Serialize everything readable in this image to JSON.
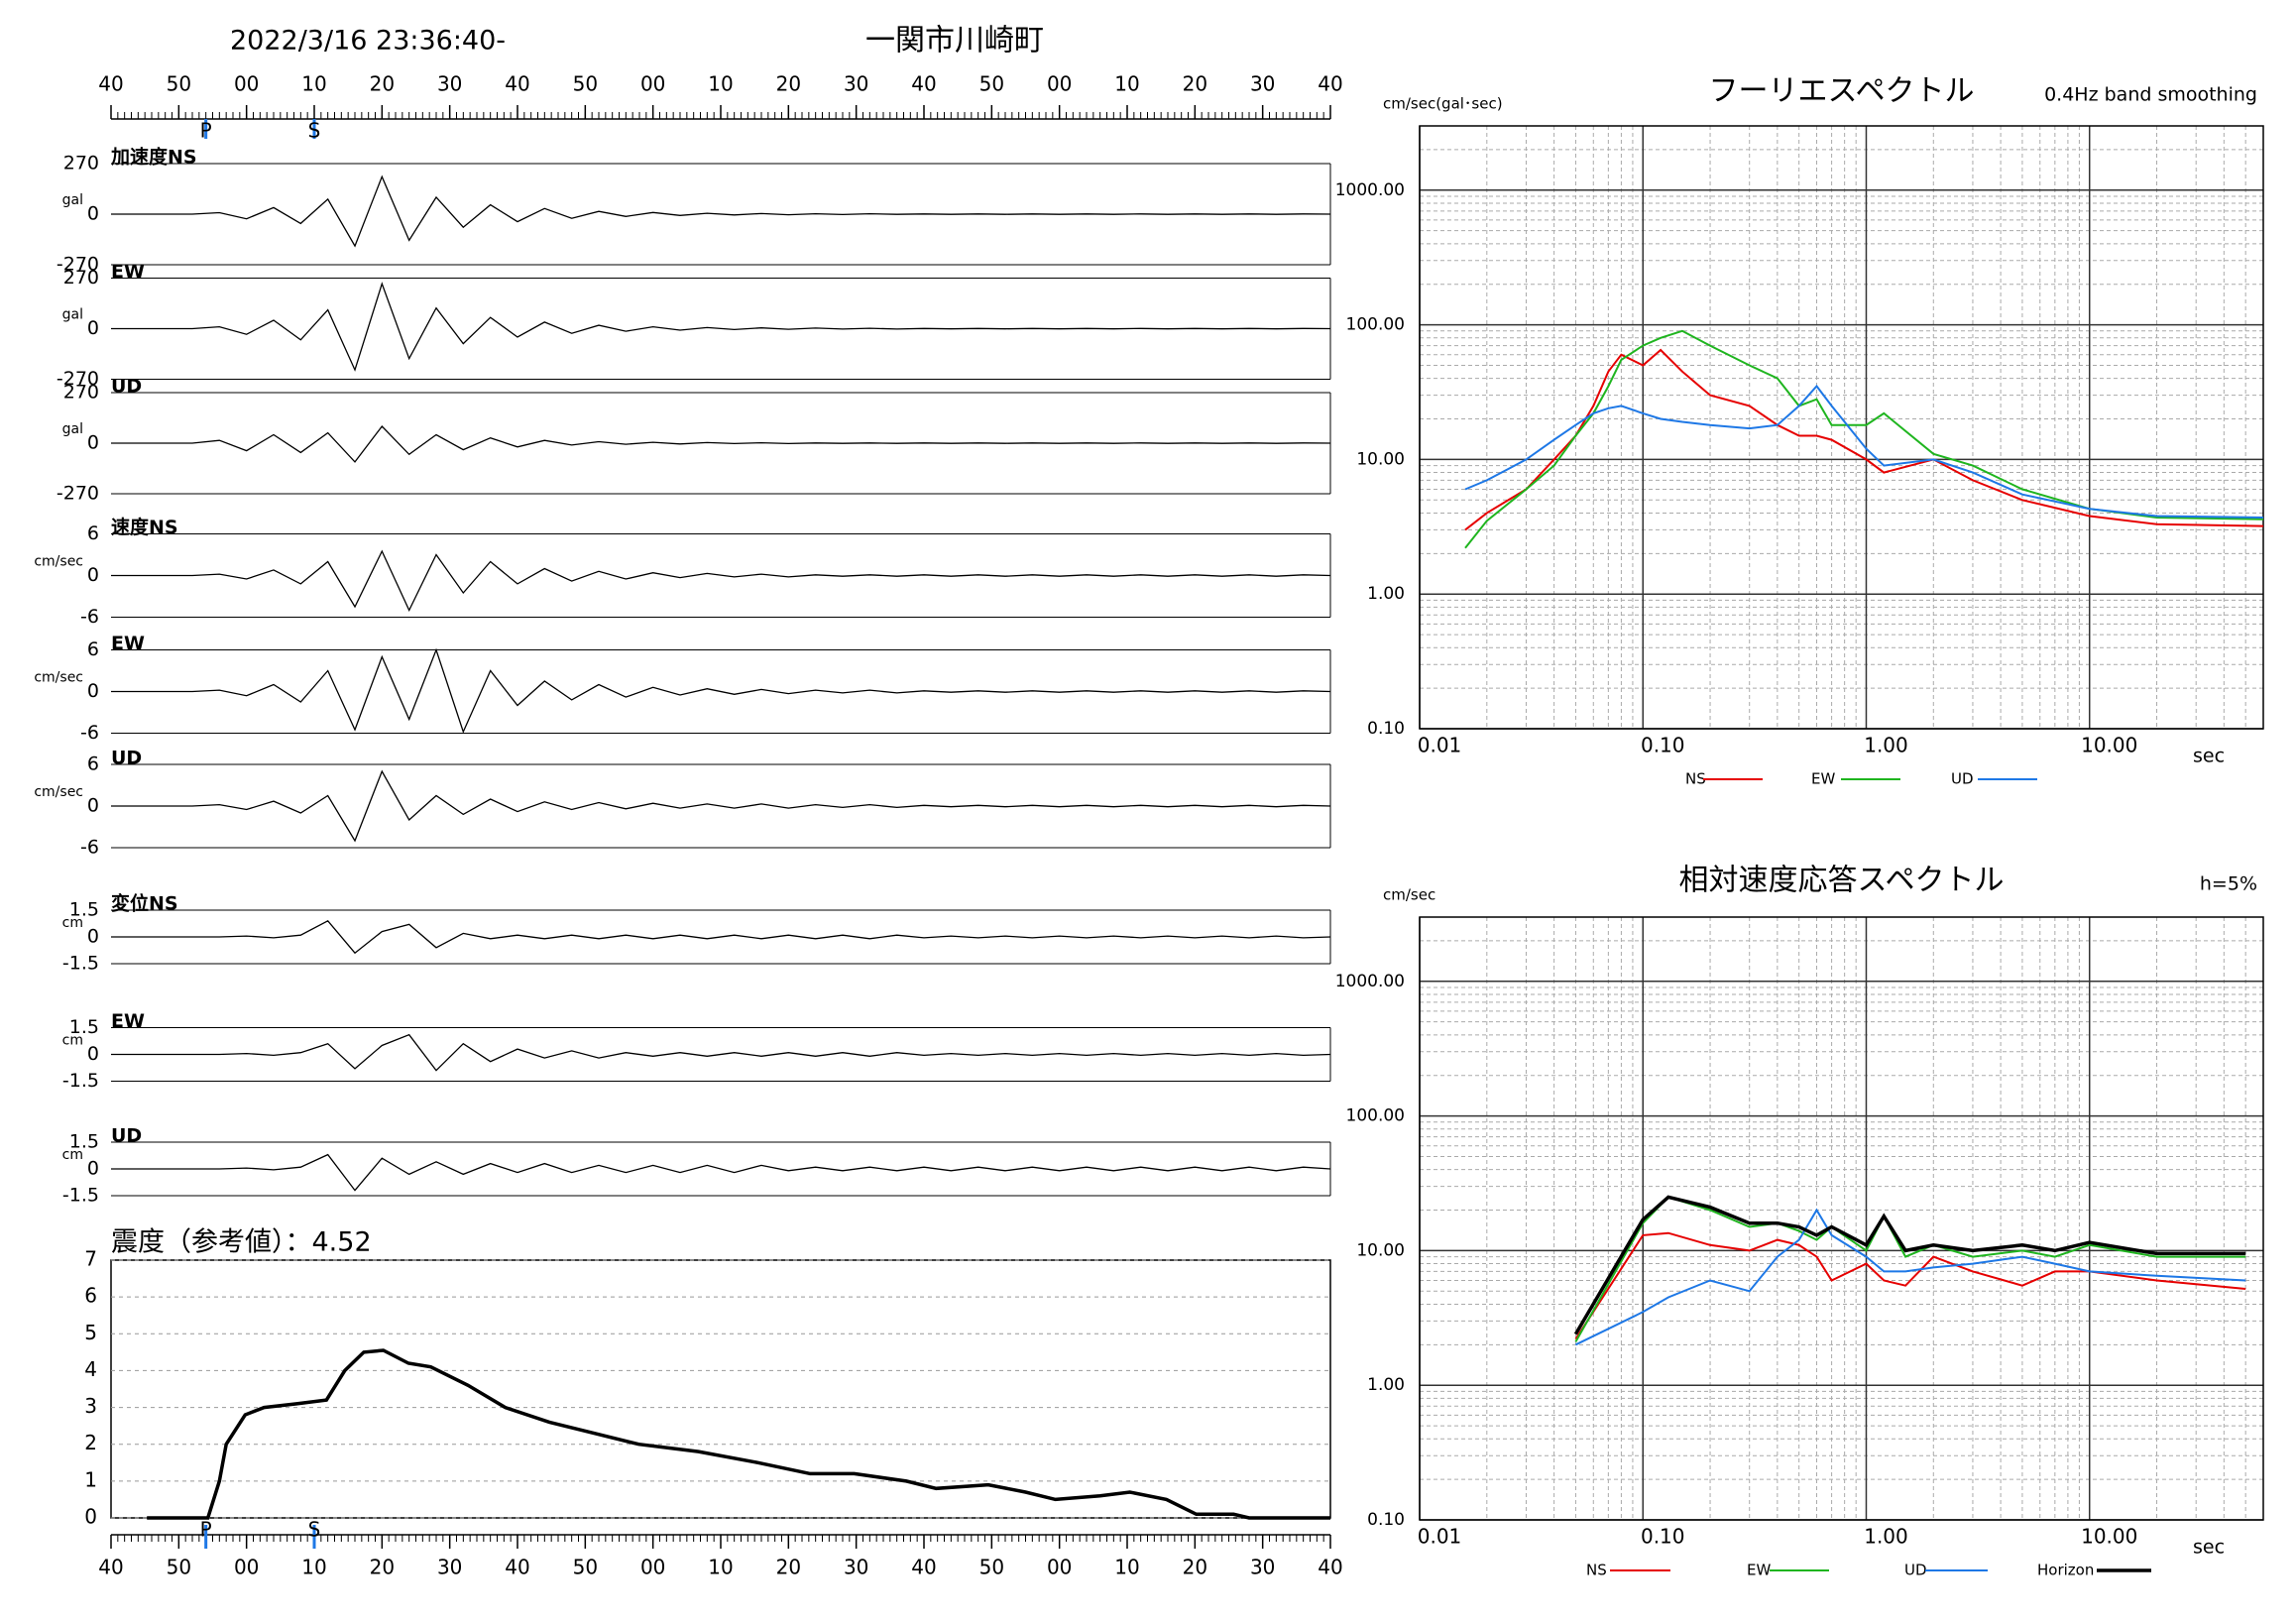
{
  "header": {
    "datetime": "2022/3/16 23:36:40-",
    "location": "一関市川崎町"
  },
  "chart_data": [
    {
      "type": "waveform",
      "xlim": [
        0,
        180
      ],
      "xticks": [
        {
          "value": 0,
          "label": "40"
        },
        {
          "value": 10,
          "label": "50"
        },
        {
          "value": 20,
          "label": "00"
        },
        {
          "value": 30,
          "label": "10"
        },
        {
          "value": 40,
          "label": "20"
        },
        {
          "value": 50,
          "label": "30"
        },
        {
          "value": 60,
          "label": "40"
        },
        {
          "value": 70,
          "label": "50"
        },
        {
          "value": 80,
          "label": "00"
        },
        {
          "value": 90,
          "label": "10"
        },
        {
          "value": 100,
          "label": "20"
        },
        {
          "value": 110,
          "label": "30"
        },
        {
          "value": 120,
          "label": "40"
        },
        {
          "value": 130,
          "label": "50"
        },
        {
          "value": 140,
          "label": "00"
        },
        {
          "value": 150,
          "label": "10"
        },
        {
          "value": 160,
          "label": "20"
        },
        {
          "value": 170,
          "label": "30"
        },
        {
          "value": 180,
          "label": "40"
        }
      ],
      "phases": [
        {
          "name": "P",
          "value": 14
        },
        {
          "name": "S",
          "value": 30
        }
      ],
      "x": [
        0,
        4,
        8,
        12,
        16,
        20,
        24,
        28,
        32,
        36,
        40,
        44,
        48,
        52,
        56,
        60,
        64,
        68,
        72,
        76,
        80,
        84,
        88,
        92,
        96,
        100,
        104,
        108,
        112,
        116,
        120,
        124,
        128,
        132,
        136,
        140,
        144,
        148,
        152,
        156,
        160,
        164,
        168,
        172,
        176,
        180
      ],
      "traces": [
        {
          "name": "加速度NS",
          "unit": "gal",
          "ylim": [
            -270,
            270
          ],
          "yticks": [
            270,
            0,
            -270
          ],
          "values": [
            0,
            0,
            0,
            0,
            8,
            -25,
            35,
            -50,
            80,
            -170,
            200,
            -140,
            90,
            -70,
            50,
            -40,
            30,
            -22,
            15,
            -12,
            9,
            -7,
            5,
            -4,
            3,
            -3,
            2,
            -2,
            2,
            -1,
            1,
            -1,
            1,
            -1,
            1,
            -1,
            1,
            -1,
            1,
            -1,
            1,
            -1,
            1,
            -1,
            1,
            0
          ]
        },
        {
          "name": "EW",
          "unit": "gal",
          "ylim": [
            -270,
            270
          ],
          "yticks": [
            270,
            0,
            -270
          ],
          "values": [
            0,
            0,
            0,
            0,
            10,
            -30,
            45,
            -60,
            100,
            -220,
            240,
            -160,
            110,
            -80,
            60,
            -45,
            35,
            -25,
            18,
            -14,
            10,
            -8,
            6,
            -5,
            4,
            -3,
            3,
            -2,
            2,
            -2,
            1,
            -1,
            1,
            -1,
            1,
            -1,
            1,
            -1,
            1,
            -1,
            1,
            -1,
            1,
            -1,
            1,
            0
          ]
        },
        {
          "name": "UD",
          "unit": "gal",
          "ylim": [
            -270,
            270
          ],
          "yticks": [
            270,
            0,
            -270
          ],
          "values": [
            0,
            0,
            0,
            0,
            15,
            -40,
            45,
            -50,
            55,
            -100,
            90,
            -60,
            45,
            -35,
            28,
            -20,
            15,
            -10,
            8,
            -6,
            5,
            -4,
            3,
            -2,
            2,
            -2,
            1,
            -1,
            1,
            -1,
            1,
            -1,
            1,
            -1,
            1,
            -1,
            1,
            -1,
            1,
            -1,
            1,
            -1,
            1,
            -1,
            1,
            0
          ]
        },
        {
          "name": "速度NS",
          "unit": "cm/sec",
          "ylim": [
            -6,
            6
          ],
          "yticks": [
            6,
            0,
            -6
          ],
          "values": [
            0,
            0,
            0,
            0,
            0.2,
            -0.5,
            0.8,
            -1.2,
            2,
            -4.5,
            3.5,
            -5,
            3,
            -2.5,
            2,
            -1.2,
            1,
            -0.8,
            0.6,
            -0.5,
            0.4,
            -0.3,
            0.3,
            -0.2,
            0.2,
            -0.2,
            0.1,
            -0.1,
            0.1,
            -0.1,
            0.1,
            -0.1,
            0.1,
            -0.1,
            0.1,
            -0.1,
            0.1,
            -0.1,
            0.1,
            -0.1,
            0.1,
            -0.1,
            0.1,
            -0.1,
            0.1,
            0
          ]
        },
        {
          "name": "EW",
          "unit": "cm/sec",
          "ylim": [
            -6,
            6
          ],
          "yticks": [
            6,
            0,
            -6
          ],
          "values": [
            0,
            0,
            0,
            0,
            0.2,
            -0.6,
            1,
            -1.5,
            3,
            -5.5,
            5,
            -4,
            6,
            -5.8,
            3,
            -2,
            1.5,
            -1.2,
            1,
            -0.8,
            0.6,
            -0.5,
            0.4,
            -0.4,
            0.3,
            -0.3,
            0.2,
            -0.2,
            0.2,
            -0.2,
            0.1,
            -0.1,
            0.1,
            -0.1,
            0.1,
            -0.1,
            0.1,
            -0.1,
            0.1,
            -0.1,
            0.1,
            -0.1,
            0.1,
            -0.1,
            0.1,
            0
          ]
        },
        {
          "name": "UD",
          "unit": "cm/sec",
          "ylim": [
            -6,
            6
          ],
          "yticks": [
            6,
            0,
            -6
          ],
          "values": [
            0,
            0,
            0,
            0,
            0.2,
            -0.5,
            0.7,
            -1,
            1.5,
            -5,
            5,
            -2,
            1.5,
            -1.2,
            1,
            -0.8,
            0.6,
            -0.5,
            0.5,
            -0.4,
            0.4,
            -0.3,
            0.3,
            -0.3,
            0.3,
            -0.3,
            0.2,
            -0.2,
            0.2,
            -0.2,
            0.1,
            -0.1,
            0.1,
            -0.1,
            0.1,
            -0.1,
            0.1,
            -0.1,
            0.1,
            -0.1,
            0.1,
            -0.1,
            0.1,
            -0.1,
            0.1,
            0
          ]
        },
        {
          "name": "変位NS",
          "unit": "cm",
          "ylim": [
            -1.5,
            1.5
          ],
          "yticks": [
            1.5,
            0,
            -1.5
          ],
          "values": [
            0,
            0,
            0,
            0,
            0,
            0.05,
            -0.05,
            0.1,
            0.9,
            -0.9,
            0.3,
            0.7,
            -0.6,
            0.2,
            -0.1,
            0.1,
            -0.1,
            0.1,
            -0.1,
            0.1,
            -0.1,
            0.1,
            -0.1,
            0.1,
            -0.1,
            0.1,
            -0.1,
            0.1,
            -0.1,
            0.1,
            -0.05,
            0.05,
            -0.05,
            0.05,
            -0.05,
            0.05,
            -0.05,
            0.05,
            -0.05,
            0.05,
            -0.05,
            0.05,
            -0.05,
            0.05,
            -0.05,
            0
          ]
        },
        {
          "name": "EW",
          "unit": "cm",
          "ylim": [
            -1.5,
            1.5
          ],
          "yticks": [
            1.5,
            0,
            -1.5
          ],
          "values": [
            0,
            0,
            0,
            0,
            0,
            0.05,
            -0.05,
            0.1,
            0.6,
            -0.8,
            0.5,
            1.1,
            -0.9,
            0.6,
            -0.4,
            0.3,
            -0.2,
            0.2,
            -0.2,
            0.1,
            -0.1,
            0.1,
            -0.1,
            0.1,
            -0.1,
            0.1,
            -0.1,
            0.1,
            -0.1,
            0.1,
            -0.05,
            0.05,
            -0.05,
            0.05,
            -0.05,
            0.05,
            -0.05,
            0.05,
            -0.05,
            0.05,
            -0.05,
            0.05,
            -0.05,
            0.05,
            -0.05,
            0
          ]
        },
        {
          "name": "UD",
          "unit": "cm",
          "ylim": [
            -1.5,
            1.5
          ],
          "yticks": [
            1.5,
            0,
            -1.5
          ],
          "values": [
            0,
            0,
            0,
            0,
            0,
            0.05,
            -0.05,
            0.1,
            0.8,
            -1.2,
            0.6,
            -0.3,
            0.4,
            -0.3,
            0.3,
            -0.2,
            0.3,
            -0.2,
            0.2,
            -0.2,
            0.2,
            -0.2,
            0.2,
            -0.2,
            0.2,
            -0.1,
            0.1,
            -0.1,
            0.1,
            -0.1,
            0.1,
            -0.1,
            0.1,
            -0.1,
            0.1,
            -0.1,
            0.1,
            -0.1,
            0.1,
            -0.1,
            0.1,
            -0.1,
            0.1,
            -0.1,
            0.1,
            0
          ]
        }
      ]
    },
    {
      "type": "line",
      "title": "震度（参考値）：4.52",
      "color": "#000000",
      "grid": true,
      "xlim": [
        0,
        180
      ],
      "xticks": [
        {
          "value": 0,
          "label": "40"
        },
        {
          "value": 10,
          "label": "50"
        },
        {
          "value": 20,
          "label": "00"
        },
        {
          "value": 30,
          "label": "10"
        },
        {
          "value": 40,
          "label": "20"
        },
        {
          "value": 50,
          "label": "30"
        },
        {
          "value": 60,
          "label": "40"
        },
        {
          "value": 70,
          "label": "50"
        },
        {
          "value": 80,
          "label": "00"
        },
        {
          "value": 90,
          "label": "10"
        },
        {
          "value": 100,
          "label": "20"
        },
        {
          "value": 110,
          "label": "30"
        },
        {
          "value": 120,
          "label": "40"
        },
        {
          "value": 130,
          "label": "50"
        },
        {
          "value": 140,
          "label": "00"
        },
        {
          "value": 150,
          "label": "10"
        },
        {
          "value": 160,
          "label": "20"
        },
        {
          "value": 170,
          "label": "30"
        },
        {
          "value": 180,
          "label": "40"
        }
      ],
      "phases": [
        {
          "name": "P",
          "value": 14
        },
        {
          "name": "S",
          "value": 30
        }
      ],
      "ylim": [
        0,
        7
      ],
      "yticks": [
        0,
        1,
        2,
        3,
        4,
        5,
        6,
        7
      ],
      "x": [
        5.3,
        14.3,
        16,
        17,
        19.8,
        22.6,
        27.4,
        31.8,
        34.5,
        37.3,
        40.2,
        43.9,
        47.2,
        52.7,
        58.2,
        64.7,
        71.3,
        77.9,
        86.7,
        95.5,
        103.2,
        109.7,
        117.4,
        121.8,
        129.5,
        135,
        139.4,
        146,
        150.4,
        155.8,
        160.2,
        165.7,
        168,
        180
      ],
      "values": [
        0,
        0,
        1,
        2,
        2.8,
        3,
        3.1,
        3.2,
        4,
        4.5,
        4.55,
        4.2,
        4.1,
        3.6,
        3,
        2.6,
        2.3,
        2,
        1.8,
        1.5,
        1.2,
        1.2,
        1,
        0.8,
        0.9,
        0.7,
        0.5,
        0.6,
        0.7,
        0.5,
        0.1,
        0.1,
        0,
        0
      ]
    },
    {
      "type": "loglog",
      "title": "フーリエスペクトル",
      "subtitle": "0.4Hz band smoothing",
      "ylabel": "cm/sec(gal･sec)",
      "xlabel": "sec",
      "log_scale": true,
      "grid": true,
      "xlim": [
        0.01,
        60
      ],
      "ylim": [
        0.1,
        3000
      ],
      "xticks": [
        0.01,
        {
          "value": 0.1,
          "label": "0.10"
        },
        {
          "value": 1,
          "label": "1.00"
        },
        {
          "value": 10,
          "label": "10.00"
        }
      ],
      "yticks": [
        {
          "value": 0.1,
          "label": "0.10"
        },
        {
          "value": 1,
          "label": "1.00"
        },
        {
          "value": 10,
          "label": "10.00"
        },
        {
          "value": 100,
          "label": "100.00"
        },
        {
          "value": 1000,
          "label": "1000.00"
        }
      ],
      "x": [
        0.016,
        0.02,
        0.03,
        0.04,
        0.05,
        0.06,
        0.07,
        0.08,
        0.1,
        0.12,
        0.15,
        0.2,
        0.3,
        0.4,
        0.5,
        0.6,
        0.7,
        1,
        1.2,
        2,
        3,
        5,
        10,
        20,
        60
      ],
      "series": [
        {
          "name": "NS",
          "color": "#e60000",
          "values": [
            3,
            4,
            6,
            10,
            15,
            25,
            45,
            60,
            50,
            65,
            45,
            30,
            25,
            18,
            15,
            15,
            14,
            10,
            8,
            10,
            7,
            5,
            3.8,
            3.3,
            3.2
          ]
        },
        {
          "name": "EW",
          "color": "#1fb51f",
          "values": [
            2.2,
            3.5,
            6,
            9,
            15,
            22,
            35,
            55,
            70,
            80,
            90,
            70,
            50,
            40,
            25,
            28,
            18,
            18,
            22,
            11,
            9,
            6,
            4.3,
            3.7,
            3.6
          ]
        },
        {
          "name": "UD",
          "color": "#1e78e6",
          "values": [
            6,
            7,
            10,
            14,
            18,
            22,
            24,
            25,
            22,
            20,
            19,
            18,
            17,
            18,
            25,
            35,
            25,
            12,
            9,
            10,
            8,
            5.5,
            4.3,
            3.8,
            3.7
          ]
        }
      ]
    },
    {
      "type": "loglog",
      "title": "相対速度応答スペクトル",
      "subtitle": "h=5%",
      "ylabel": "cm/sec",
      "xlabel": "sec",
      "log_scale": true,
      "grid": true,
      "xlim": [
        0.01,
        60
      ],
      "ylim": [
        0.1,
        3000
      ],
      "xticks": [
        0.01,
        {
          "value": 0.1,
          "label": "0.10"
        },
        {
          "value": 1,
          "label": "1.00"
        },
        {
          "value": 10,
          "label": "10.00"
        }
      ],
      "yticks": [
        {
          "value": 0.1,
          "label": "0.10"
        },
        {
          "value": 1,
          "label": "1.00"
        },
        {
          "value": 10,
          "label": "10.00"
        },
        {
          "value": 100,
          "label": "100.00"
        },
        {
          "value": 1000,
          "label": "1000.00"
        }
      ],
      "x": [
        0.05,
        0.1,
        0.13,
        0.2,
        0.3,
        0.4,
        0.5,
        0.6,
        0.7,
        1,
        1.2,
        1.5,
        2,
        3,
        5,
        7,
        10,
        20,
        50
      ],
      "series": [
        {
          "name": "NS",
          "color": "#e60000",
          "values": [
            2.2,
            13,
            13.5,
            11,
            10,
            12,
            11,
            9,
            6,
            8,
            6,
            5.5,
            9,
            7,
            5.5,
            7,
            7,
            6,
            5.2
          ]
        },
        {
          "name": "EW",
          "color": "#1fb51f",
          "values": [
            2.1,
            16,
            25,
            20,
            15,
            16,
            14,
            12,
            15,
            10,
            18,
            9,
            11,
            9,
            10,
            9,
            11,
            9,
            9
          ]
        },
        {
          "name": "UD",
          "color": "#1e78e6",
          "values": [
            2,
            3.5,
            4.5,
            6,
            5,
            9,
            12,
            20,
            13,
            9,
            7,
            7,
            7.5,
            8,
            9,
            8,
            7,
            6.5,
            6
          ]
        },
        {
          "name": "Horizon",
          "color": "#000000",
          "values": [
            2.4,
            17,
            25,
            21,
            16,
            16,
            15,
            13,
            15,
            11,
            18,
            10,
            11,
            10,
            11,
            10,
            11.5,
            9.5,
            9.5
          ]
        }
      ]
    }
  ]
}
